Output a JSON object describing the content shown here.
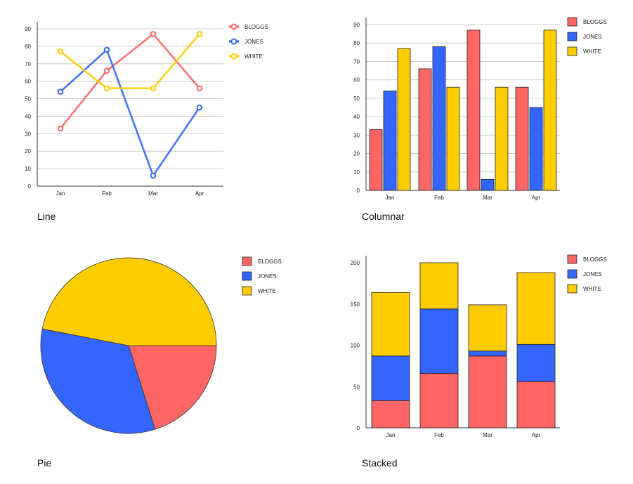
{
  "colors": {
    "BLOGGS": "#fe6565",
    "JONES": "#3366fe",
    "WHITE": "#ffcc00"
  },
  "legend": [
    "BLOGGS",
    "JONES",
    "WHITE"
  ],
  "chart_data": [
    {
      "type": "line",
      "caption": "Line",
      "categories": [
        "Jan",
        "Feb",
        "Mar",
        "Apr"
      ],
      "series": [
        {
          "name": "BLOGGS",
          "values": [
            33,
            66,
            87,
            56
          ]
        },
        {
          "name": "JONES",
          "values": [
            54,
            78,
            6,
            45
          ]
        },
        {
          "name": "WHITE",
          "values": [
            77,
            56,
            56,
            87
          ]
        }
      ],
      "ylim": [
        0,
        90
      ],
      "yticks": [
        0,
        10,
        20,
        30,
        40,
        50,
        60,
        70,
        80,
        90
      ],
      "grid": true,
      "legend": "right"
    },
    {
      "type": "bar",
      "caption": "Columnar",
      "categories": [
        "Jan",
        "Feb",
        "Mar",
        "Apr"
      ],
      "series": [
        {
          "name": "BLOGGS",
          "values": [
            33,
            66,
            87,
            56
          ]
        },
        {
          "name": "JONES",
          "values": [
            54,
            78,
            6,
            45
          ]
        },
        {
          "name": "WHITE",
          "values": [
            77,
            56,
            56,
            87
          ]
        }
      ],
      "ylim": [
        0,
        90
      ],
      "yticks": [
        0,
        10,
        20,
        30,
        40,
        50,
        60,
        70,
        80,
        90
      ],
      "grid": true,
      "legend": "right"
    },
    {
      "type": "pie",
      "caption": "Pie",
      "slices": [
        {
          "name": "BLOGGS",
          "value": 33
        },
        {
          "name": "JONES",
          "value": 54
        },
        {
          "name": "WHITE",
          "value": 77
        }
      ],
      "legend": "right"
    },
    {
      "type": "bar",
      "stacked": true,
      "caption": "Stacked",
      "categories": [
        "Jan",
        "Feb",
        "Mar",
        "Apr"
      ],
      "series": [
        {
          "name": "BLOGGS",
          "values": [
            33,
            66,
            87,
            56
          ]
        },
        {
          "name": "JONES",
          "values": [
            54,
            78,
            6,
            45
          ]
        },
        {
          "name": "WHITE",
          "values": [
            77,
            56,
            56,
            87
          ]
        }
      ],
      "ylim": [
        0,
        200
      ],
      "yticks": [
        0,
        50,
        100,
        150,
        200
      ],
      "grid": false,
      "legend": "right"
    }
  ]
}
